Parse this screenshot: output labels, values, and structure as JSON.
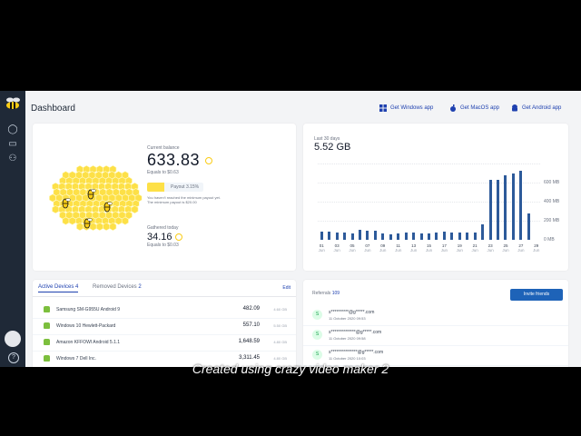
{
  "app": {
    "page_title": "Dashboard",
    "logo_icon": "bee-logo-icon"
  },
  "sidebar": {
    "items": [
      {
        "icon": "dashboard-icon"
      },
      {
        "icon": "devices-icon"
      },
      {
        "icon": "referrals-icon"
      }
    ],
    "help": "?"
  },
  "header": {
    "links": [
      {
        "label": "Get Windows app",
        "icon": "windows-icon"
      },
      {
        "label": "Get MacOS app",
        "icon": "apple-icon"
      },
      {
        "label": "Get Android app",
        "icon": "android-icon"
      }
    ]
  },
  "balance": {
    "current_label": "Current balance",
    "current_value": "633.83",
    "current_equiv": "Equals to $0.63",
    "payout_label": "Payout 3.15%",
    "payout_fraction": 0.3,
    "note": "You haven't reached the minimum payout yet. The minimum payout is $20.00",
    "today_label": "Gathered today",
    "today_value": "34.16",
    "today_equiv": "Equals to $0.03"
  },
  "usage": {
    "label": "Last 30 days",
    "value": "5.52 GB"
  },
  "chart_data": {
    "type": "bar",
    "categories": [
      "01 Jun",
      "02 Jun",
      "03 Jun",
      "04 Jun",
      "05 Jun",
      "06 Jun",
      "07 Jun",
      "08 Jun",
      "09 Jun",
      "10 Jun",
      "11 Jun",
      "12 Jun",
      "13 Jun",
      "14 Jun",
      "15 Jun",
      "16 Jun",
      "17 Jun",
      "18 Jun",
      "19 Jun",
      "20 Jun",
      "21 Jun",
      "22 Jun",
      "23 Jun",
      "24 Jun",
      "25 Jun",
      "26 Jun",
      "27 Jun",
      "28 Jun",
      "29 Jun"
    ],
    "tick_labels": [
      [
        "01",
        "Jun"
      ],
      [
        "03",
        "Jun"
      ],
      [
        "05",
        "Jun"
      ],
      [
        "07",
        "Jun"
      ],
      [
        "09",
        "Jun"
      ],
      [
        "11",
        "Jun"
      ],
      [
        "13",
        "Jun"
      ],
      [
        "15",
        "Jun"
      ],
      [
        "17",
        "Jun"
      ],
      [
        "19",
        "Jun"
      ],
      [
        "21",
        "Jun"
      ],
      [
        "23",
        "Jun"
      ],
      [
        "25",
        "Jun"
      ],
      [
        "27",
        "Jun"
      ],
      [
        "29",
        "Jun"
      ]
    ],
    "values": [
      110,
      110,
      100,
      95,
      80,
      130,
      125,
      115,
      80,
      70,
      80,
      90,
      90,
      85,
      80,
      100,
      110,
      90,
      100,
      95,
      95,
      200,
      790,
      780,
      840,
      870,
      900,
      350,
      0
    ],
    "y_ticks": [
      "600 MB",
      "400 MB",
      "200 MB",
      "0 MB"
    ],
    "ylim": [
      0,
      1000
    ],
    "color": "#2d5a9a"
  },
  "devices": {
    "tabs": [
      {
        "label": "Active Devices",
        "count": "4"
      },
      {
        "label": "Removed Devices",
        "count": "2"
      }
    ],
    "edit_label": "Edit",
    "rows": [
      {
        "name": "Samsung SM-G955U Android 9",
        "amount": "482.09",
        "sub": "4.60 GB"
      },
      {
        "name": "Windows 10 Hewlett-Packard",
        "amount": "557.10",
        "sub": "5.50 GB"
      },
      {
        "name": "Amazon KFFOWI Android 5.1.1",
        "amount": "1,648.59",
        "sub": "4.80 GB"
      },
      {
        "name": "Windows 7 Dell Inc.",
        "amount": "3,311.45",
        "sub": "4.80 GB"
      }
    ]
  },
  "referrals": {
    "label": "Referrals",
    "count": "109",
    "invite_label": "Invite friends",
    "rows": [
      {
        "initial": "S",
        "email": "s**********@g*****.com",
        "date": "11 October 2020 09:53"
      },
      {
        "initial": "S",
        "email": "s**************@g*****.com",
        "date": "11 October 2020 09:58"
      },
      {
        "initial": "S",
        "email": "s***************@g*****.com",
        "date": "11 October 2020 10:03"
      }
    ]
  },
  "overlay": {
    "caption": "Created using crazy video maker 2"
  }
}
